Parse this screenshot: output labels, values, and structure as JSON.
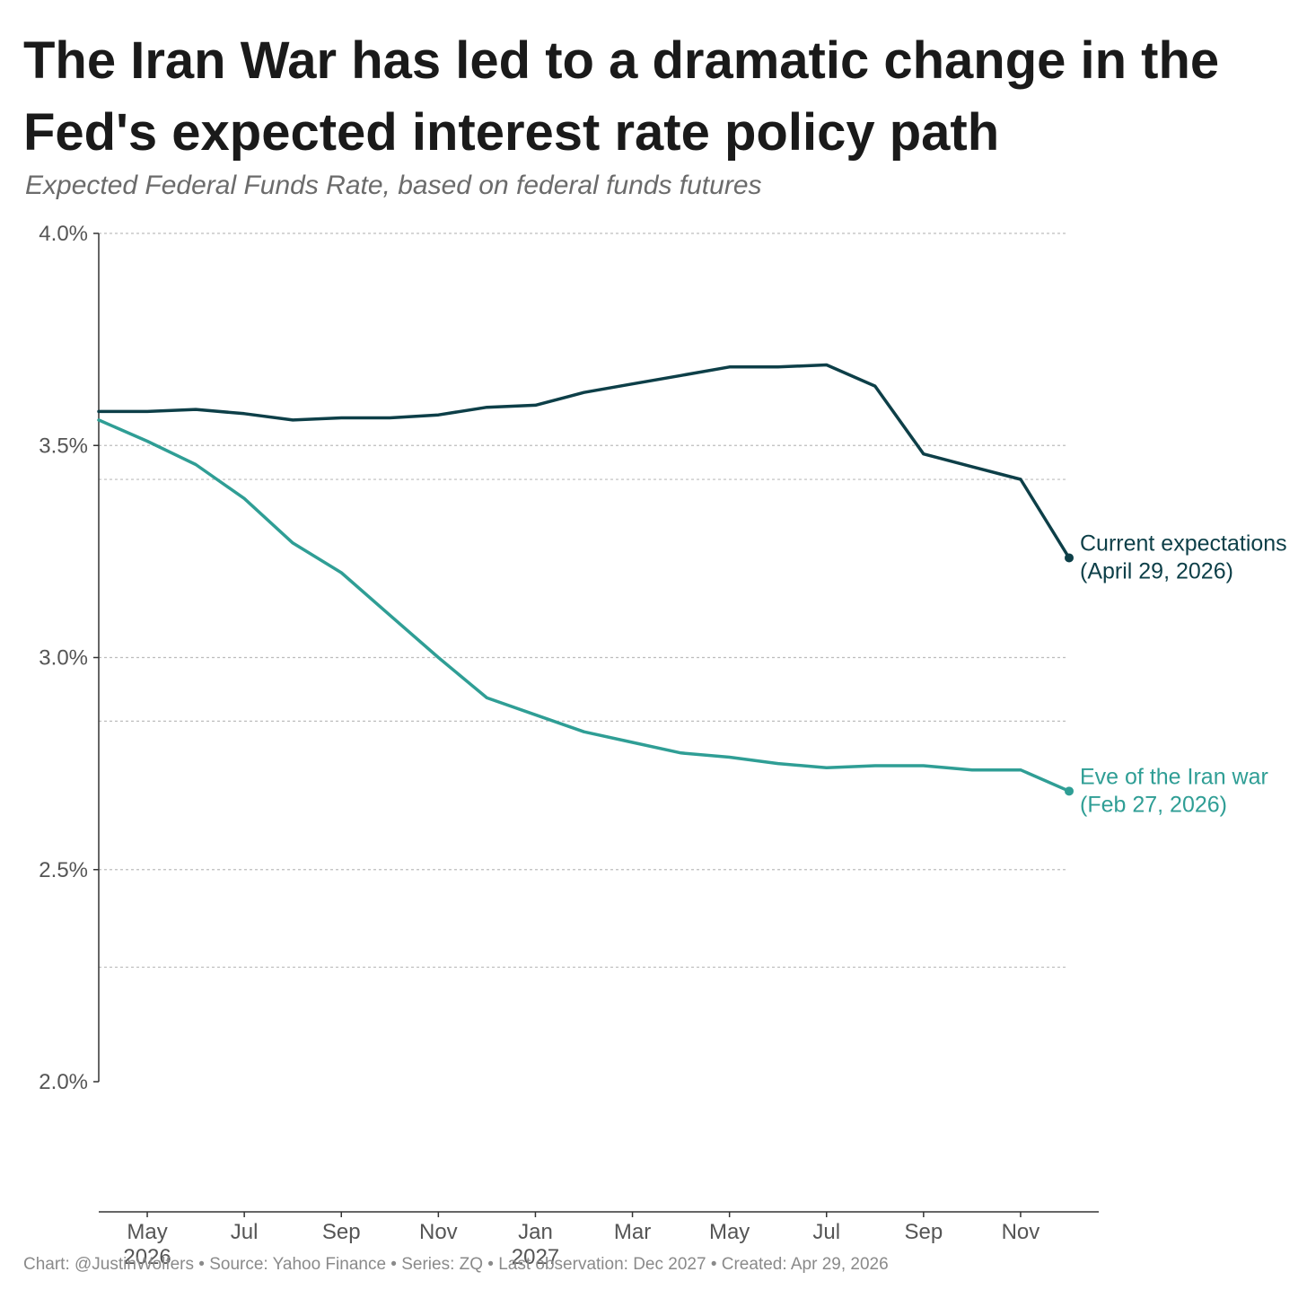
{
  "header": {
    "title": "The Iran War has led to a dramatic change in the Fed's expected interest rate policy path",
    "subtitle": "Expected Federal Funds Rate, based on federal funds futures"
  },
  "footer": {
    "note": "Chart: @JustinWolfers • Source: Yahoo Finance • Series: ZQ • Last observation: Dec 2027 • Created: Apr 29, 2026"
  },
  "chart_data": {
    "type": "line",
    "title": "The Iran War has led to a dramatic change in the Fed's expected interest rate policy path",
    "subtitle": "Expected Federal Funds Rate, based on federal funds futures",
    "xlabel": "",
    "ylabel": "",
    "ylim": [
      2.0,
      4.0
    ],
    "y_ticks": [
      "4.0%",
      "3.5%",
      "3.0%",
      "2.5%",
      "2.0%"
    ],
    "y_tick_values": [
      4.0,
      3.5,
      3.0,
      2.5,
      2.0
    ],
    "x_ticks": [
      {
        "label": "May",
        "sub": "2026",
        "x": "2026-05"
      },
      {
        "label": "Jul",
        "sub": "",
        "x": "2026-07"
      },
      {
        "label": "Sep",
        "sub": "",
        "x": "2026-09"
      },
      {
        "label": "Nov",
        "sub": "",
        "x": "2026-11"
      },
      {
        "label": "Jan",
        "sub": "2027",
        "x": "2027-01"
      },
      {
        "label": "Mar",
        "sub": "",
        "x": "2027-03"
      },
      {
        "label": "May",
        "sub": "",
        "x": "2027-05"
      },
      {
        "label": "Jul",
        "sub": "",
        "x": "2027-07"
      },
      {
        "label": "Sep",
        "sub": "",
        "x": "2027-09"
      },
      {
        "label": "Nov",
        "sub": "",
        "x": "2027-11"
      }
    ],
    "x": [
      "2026-04",
      "2026-05",
      "2026-06",
      "2026-07",
      "2026-08",
      "2026-09",
      "2026-10",
      "2026-11",
      "2026-12",
      "2027-01",
      "2027-02",
      "2027-03",
      "2027-04",
      "2027-05",
      "2027-06",
      "2027-07",
      "2027-08",
      "2027-09",
      "2027-10",
      "2027-11",
      "2027-12"
    ],
    "grid": "horizontal dotted",
    "series": [
      {
        "name": "Current expectations",
        "label_lines": [
          "Current expectations",
          "(April 29, 2026)"
        ],
        "color": "#0d3f48",
        "values": [
          3.58,
          3.58,
          3.585,
          3.575,
          3.56,
          3.565,
          3.565,
          3.572,
          3.59,
          3.595,
          3.625,
          3.645,
          3.665,
          3.685,
          3.685,
          3.69,
          3.64,
          3.48,
          3.45,
          3.42,
          3.235
        ]
      },
      {
        "name": "Eve of the Iran war",
        "label_lines": [
          "Eve of the Iran war",
          "(Feb 27, 2026)"
        ],
        "color": "#2f9e95",
        "values": [
          3.56,
          3.51,
          3.455,
          3.375,
          3.27,
          3.2,
          3.1,
          3.0,
          2.905,
          2.865,
          2.825,
          2.8,
          2.775,
          2.765,
          2.75,
          2.74,
          2.745,
          2.745,
          2.735,
          2.735,
          2.685
        ]
      }
    ]
  }
}
